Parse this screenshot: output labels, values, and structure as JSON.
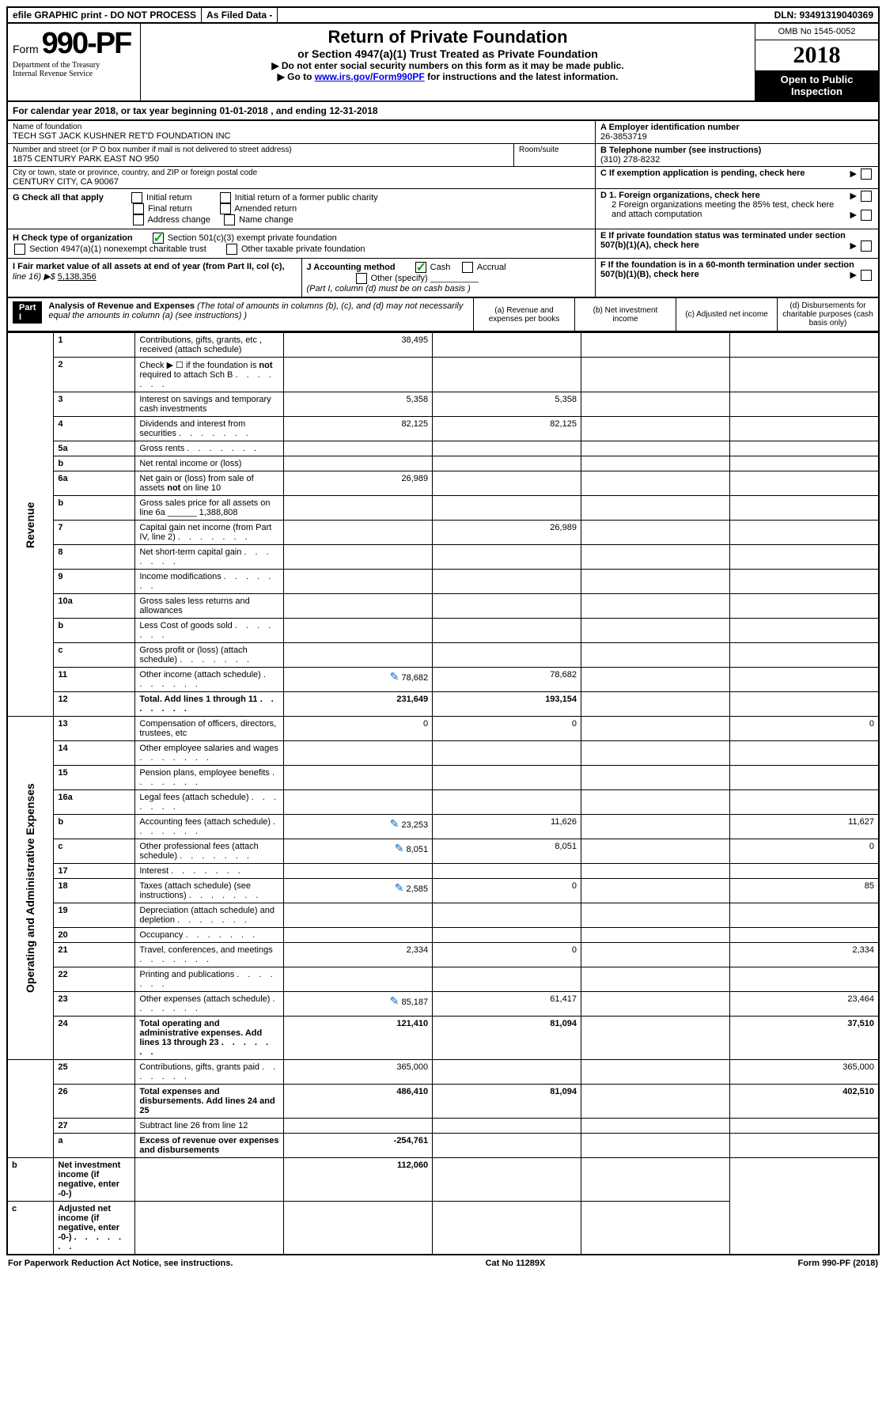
{
  "top": {
    "efile": "efile GRAPHIC print - DO NOT PROCESS",
    "asFiled": "As Filed Data -",
    "dln": "DLN: 93491319040369"
  },
  "header": {
    "formWord": "Form",
    "formNum": "990-PF",
    "dept1": "Department of the Treasury",
    "dept2": "Internal Revenue Service",
    "title": "Return of Private Foundation",
    "subtitle": "or Section 4947(a)(1) Trust Treated as Private Foundation",
    "note1": "▶ Do not enter social security numbers on this form as it may be made public.",
    "note2pre": "▶ Go to ",
    "note2link": "www.irs.gov/Form990PF",
    "note2post": " for instructions and the latest information.",
    "omb": "OMB No 1545-0052",
    "year": "2018",
    "openPublic": "Open to Public Inspection"
  },
  "calYear": {
    "pre": "For calendar year 2018, or tax year beginning ",
    "begin": "01-01-2018",
    "mid": " , and ending ",
    "end": "12-31-2018"
  },
  "info": {
    "nameLabel": "Name of foundation",
    "name": "TECH SGT JACK KUSHNER RET'D FOUNDATION INC",
    "addrLabel": "Number and street (or P O  box number if mail is not delivered to street address)",
    "addr": "1875 CENTURY PARK EAST NO 950",
    "roomLabel": "Room/suite",
    "cityLabel": "City or town, state or province, country, and ZIP or foreign postal code",
    "city": "CENTURY CITY, CA  90067",
    "aLabel": "A Employer identification number",
    "a": "26-3853719",
    "bLabel": "B Telephone number (see instructions)",
    "b": "(310) 278-8232",
    "cLabel": "C If exemption application is pending, check here",
    "gLabel": "G Check all that apply",
    "g1": "Initial return",
    "g2": "Initial return of a former public charity",
    "g3": "Final return",
    "g4": "Amended return",
    "g5": "Address change",
    "g6": "Name change",
    "d1": "D 1. Foreign organizations, check here",
    "d2": "2 Foreign organizations meeting the 85% test, check here and attach computation",
    "e": "E  If private foundation status was terminated under section 507(b)(1)(A), check here",
    "hLabel": "H Check type of organization",
    "h1": "Section 501(c)(3) exempt private foundation",
    "h2": "Section 4947(a)(1) nonexempt charitable trust",
    "h3": "Other taxable private foundation",
    "iLabel": "I Fair market value of all assets at end of year (from Part II, col  (c),",
    "iLine": "line 16) ▶$",
    "iVal": "5,138,356",
    "jLabel": "J Accounting method",
    "j1": "Cash",
    "j2": "Accrual",
    "j3": "Other (specify)",
    "jNote": "(Part I, column (d) must be on cash basis )",
    "f": "F  If the foundation is in a 60-month termination under section 507(b)(1)(B), check here"
  },
  "part1": {
    "label": "Part I",
    "title": "Analysis of Revenue and Expenses",
    "titleNote": "(The total of amounts in columns (b), (c), and (d) may not necessarily equal the amounts in column (a) (see instructions) )",
    "colA": "(a) Revenue and expenses per books",
    "colB": "(b) Net investment income",
    "colC": "(c) Adjusted net income",
    "colD": "(d) Disbursements for charitable purposes (cash basis only)",
    "sideRevenue": "Revenue",
    "sideExpenses": "Operating and Administrative Expenses"
  },
  "rows": [
    {
      "n": "1",
      "d": "Contributions, gifts, grants, etc , received (attach schedule)",
      "a": "38,495",
      "b": "",
      "c": "",
      "dd": ""
    },
    {
      "n": "2",
      "d": "Check ▶ ☐ if the foundation is not required to attach Sch B",
      "dots": true
    },
    {
      "n": "3",
      "d": "Interest on savings and temporary cash investments",
      "a": "5,358",
      "b": "5,358"
    },
    {
      "n": "4",
      "d": "Dividends and interest from securities",
      "a": "82,125",
      "b": "82,125",
      "dots": true
    },
    {
      "n": "5a",
      "d": "Gross rents",
      "dots": true
    },
    {
      "n": "b",
      "d": "Net rental income or (loss)"
    },
    {
      "n": "6a",
      "d": "Net gain or (loss) from sale of assets not on line 10",
      "a": "26,989"
    },
    {
      "n": "b",
      "d": "Gross sales price for all assets on line 6a ______ 1,388,808"
    },
    {
      "n": "7",
      "d": "Capital gain net income (from Part IV, line 2)",
      "b": "26,989",
      "dots": true
    },
    {
      "n": "8",
      "d": "Net short-term capital gain",
      "dots": true
    },
    {
      "n": "9",
      "d": "Income modifications",
      "dots": true
    },
    {
      "n": "10a",
      "d": "Gross sales less returns and allowances"
    },
    {
      "n": "b",
      "d": "Less  Cost of goods sold",
      "dots": true
    },
    {
      "n": "c",
      "d": "Gross profit or (loss) (attach schedule)",
      "dots": true
    },
    {
      "n": "11",
      "d": "Other income (attach schedule)",
      "a": "78,682",
      "b": "78,682",
      "icon": true,
      "dots": true
    },
    {
      "n": "12",
      "d": "Total. Add lines 1 through 11",
      "a": "231,649",
      "b": "193,154",
      "bold": true,
      "dots": true
    },
    {
      "n": "13",
      "d": "Compensation of officers, directors, trustees, etc",
      "a": "0",
      "b": "0",
      "dd": "0"
    },
    {
      "n": "14",
      "d": "Other employee salaries and wages",
      "dots": true
    },
    {
      "n": "15",
      "d": "Pension plans, employee benefits",
      "dots": true
    },
    {
      "n": "16a",
      "d": "Legal fees (attach schedule)",
      "dots": true
    },
    {
      "n": "b",
      "d": "Accounting fees (attach schedule)",
      "a": "23,253",
      "b": "11,626",
      "dd": "11,627",
      "icon": true,
      "dots": true
    },
    {
      "n": "c",
      "d": "Other professional fees (attach schedule)",
      "a": "8,051",
      "b": "8,051",
      "dd": "0",
      "icon": true,
      "dots": true
    },
    {
      "n": "17",
      "d": "Interest",
      "dots": true
    },
    {
      "n": "18",
      "d": "Taxes (attach schedule) (see instructions)",
      "a": "2,585",
      "b": "0",
      "dd": "85",
      "icon": true,
      "dots": true
    },
    {
      "n": "19",
      "d": "Depreciation (attach schedule) and depletion",
      "dots": true
    },
    {
      "n": "20",
      "d": "Occupancy",
      "dots": true
    },
    {
      "n": "21",
      "d": "Travel, conferences, and meetings",
      "a": "2,334",
      "b": "0",
      "dd": "2,334",
      "dots": true
    },
    {
      "n": "22",
      "d": "Printing and publications",
      "dots": true
    },
    {
      "n": "23",
      "d": "Other expenses (attach schedule)",
      "a": "85,187",
      "b": "61,417",
      "dd": "23,464",
      "icon": true,
      "dots": true
    },
    {
      "n": "24",
      "d": "Total operating and administrative expenses. Add lines 13 through 23",
      "a": "121,410",
      "b": "81,094",
      "dd": "37,510",
      "bold": true,
      "dots": true
    },
    {
      "n": "25",
      "d": "Contributions, gifts, grants paid",
      "a": "365,000",
      "dd": "365,000",
      "dots": true
    },
    {
      "n": "26",
      "d": "Total expenses and disbursements. Add lines 24 and 25",
      "a": "486,410",
      "b": "81,094",
      "dd": "402,510",
      "bold": true
    },
    {
      "n": "27",
      "d": "Subtract line 26 from line 12"
    },
    {
      "n": "a",
      "d": "Excess of revenue over expenses and disbursements",
      "a": "-254,761",
      "bold": true
    },
    {
      "n": "b",
      "d": "Net investment income (if negative, enter -0-)",
      "b": "112,060",
      "bold": true
    },
    {
      "n": "c",
      "d": "Adjusted net income (if negative, enter -0-)",
      "bold": true,
      "dots": true
    }
  ],
  "footer": {
    "left": "For Paperwork Reduction Act Notice, see instructions.",
    "mid": "Cat No 11289X",
    "right": "Form 990-PF (2018)"
  }
}
